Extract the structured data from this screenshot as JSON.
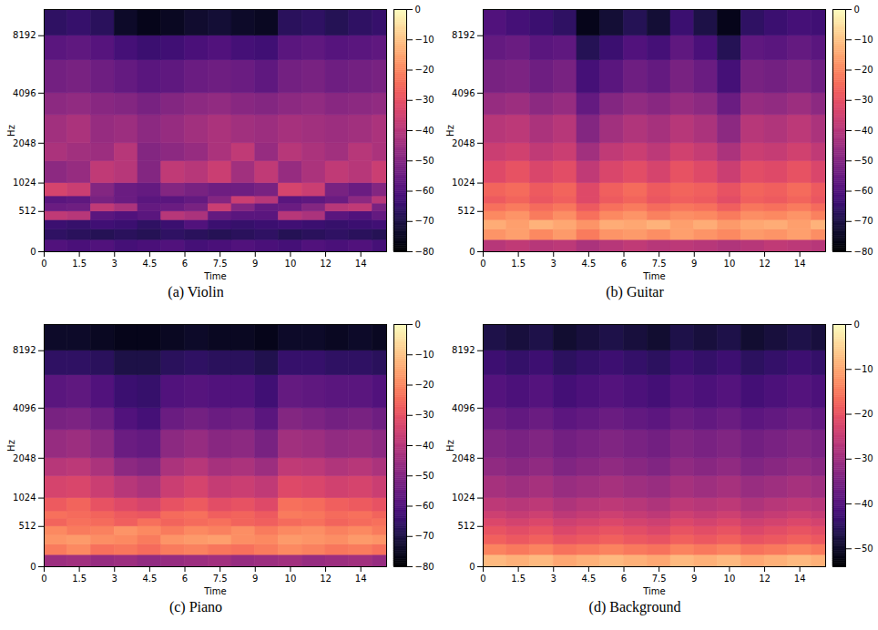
{
  "chart_data": [
    {
      "type": "heatmap",
      "title": "(a) Violin",
      "x_label": "Time",
      "y_label": "Hz",
      "color": "magma",
      "xlim": [
        0,
        14.6
      ],
      "xticks": [
        0,
        1.5,
        3,
        4.5,
        6,
        7.5,
        9,
        {
          "value": 10.5,
          "label": "10"
        },
        12,
        {
          "value": 13.5,
          "label": "14"
        }
      ],
      "ylim": [
        0,
        11025
      ],
      "yticks": [
        0,
        512,
        1024,
        2048,
        4096,
        8192
      ],
      "colorbar_lim": [
        -80,
        0
      ],
      "colorbar_ticks": [
        0,
        -10,
        -20,
        -30,
        -40,
        -50,
        -60,
        -70,
        -80
      ],
      "x_bins": [
        0,
        1,
        2,
        3,
        4,
        5,
        6,
        7,
        8,
        9,
        10,
        11,
        12,
        13,
        14,
        14.6
      ],
      "y_bins": [
        0,
        128,
        256,
        384,
        512,
        640,
        768,
        1024,
        1536,
        2048,
        3072,
        4096,
        6144,
        8192,
        11025
      ],
      "cells": [
        [
          -60,
          -61,
          -60,
          -62,
          -61,
          -60,
          -62,
          -61,
          -60,
          -61,
          -62,
          -60,
          -61,
          -60,
          -62
        ],
        [
          -66,
          -67,
          -68,
          -67,
          -68,
          -66,
          -67,
          -68,
          -67,
          -66,
          -68,
          -67,
          -66,
          -67,
          -68
        ],
        [
          -64,
          -65,
          -63,
          -64,
          -66,
          -64,
          -60,
          -64,
          -65,
          -64,
          -63,
          -64,
          -65,
          -64,
          -63
        ],
        [
          -38,
          -40,
          -58,
          -60,
          -58,
          -40,
          -42,
          -56,
          -58,
          -58,
          -40,
          -42,
          -58,
          -60,
          -56
        ],
        [
          -55,
          -54,
          -38,
          -42,
          -56,
          -55,
          -52,
          -36,
          -50,
          -56,
          -55,
          -50,
          -40,
          -38,
          -52
        ],
        [
          -58,
          -57,
          -52,
          -55,
          -58,
          -58,
          -56,
          -50,
          -36,
          -40,
          -58,
          -57,
          -55,
          -48,
          -40
        ],
        [
          -34,
          -36,
          -50,
          -55,
          -56,
          -50,
          -52,
          -54,
          -54,
          -52,
          -34,
          -36,
          -52,
          -55,
          -50
        ],
        [
          -48,
          -46,
          -38,
          -40,
          -50,
          -38,
          -40,
          -36,
          -44,
          -38,
          -46,
          -42,
          -38,
          -40,
          -36
        ],
        [
          -42,
          -44,
          -45,
          -40,
          -50,
          -48,
          -46,
          -42,
          -38,
          -46,
          -40,
          -42,
          -44,
          -40,
          -42
        ],
        [
          -44,
          -42,
          -46,
          -45,
          -48,
          -46,
          -44,
          -42,
          -44,
          -45,
          -43,
          -44,
          -45,
          -44,
          -42
        ],
        [
          -48,
          -47,
          -49,
          -50,
          -52,
          -50,
          -48,
          -47,
          -49,
          -50,
          -48,
          -47,
          -49,
          -48,
          -47
        ],
        [
          -53,
          -52,
          -54,
          -56,
          -58,
          -57,
          -55,
          -54,
          -55,
          -57,
          -53,
          -52,
          -54,
          -53,
          -52
        ],
        [
          -58,
          -57,
          -59,
          -62,
          -64,
          -63,
          -61,
          -60,
          -62,
          -63,
          -58,
          -57,
          -59,
          -58,
          -57
        ],
        [
          -66,
          -65,
          -67,
          -74,
          -76,
          -75,
          -73,
          -72,
          -74,
          -75,
          -67,
          -66,
          -68,
          -66,
          -65
        ]
      ]
    },
    {
      "type": "heatmap",
      "title": "(b) Guitar",
      "x_label": "Time",
      "y_label": "Hz",
      "color": "magma",
      "xlim": [
        0,
        14.6
      ],
      "xticks": [
        0,
        1.5,
        3,
        4.5,
        6,
        7.5,
        9,
        {
          "value": 10.5,
          "label": "10"
        },
        12,
        {
          "value": 13.5,
          "label": "14"
        }
      ],
      "ylim": [
        0,
        11025
      ],
      "yticks": [
        0,
        512,
        1024,
        2048,
        4096,
        8192
      ],
      "colorbar_lim": [
        -80,
        0
      ],
      "colorbar_ticks": [
        0,
        -10,
        -20,
        -30,
        -40,
        -50,
        -60,
        -70,
        -80
      ],
      "x_bins": [
        0,
        1,
        2,
        3,
        4,
        5,
        6,
        7,
        8,
        9,
        10,
        11,
        12,
        13,
        14,
        14.6
      ],
      "y_bins": [
        0,
        128,
        256,
        384,
        512,
        640,
        768,
        1024,
        1536,
        2048,
        3072,
        4096,
        6144,
        8192,
        11025
      ],
      "cells": [
        [
          -40,
          -38,
          -40,
          -39,
          -42,
          -40,
          -38,
          -40,
          -39,
          -40,
          -41,
          -40,
          -38,
          -39,
          -40
        ],
        [
          -18,
          -16,
          -20,
          -17,
          -22,
          -18,
          -17,
          -19,
          -16,
          -18,
          -20,
          -17,
          -18,
          -16,
          -19
        ],
        [
          -14,
          -16,
          -13,
          -15,
          -18,
          -14,
          -15,
          -13,
          -16,
          -14,
          -17,
          -15,
          -14,
          -16,
          -13
        ],
        [
          -20,
          -18,
          -22,
          -19,
          -24,
          -20,
          -18,
          -21,
          -19,
          -20,
          -22,
          -19,
          -20,
          -18,
          -21
        ],
        [
          -24,
          -22,
          -25,
          -23,
          -28,
          -24,
          -22,
          -25,
          -23,
          -24,
          -27,
          -23,
          -24,
          -22,
          -25
        ],
        [
          -28,
          -26,
          -29,
          -27,
          -32,
          -28,
          -26,
          -29,
          -27,
          -28,
          -31,
          -27,
          -28,
          -26,
          -29
        ],
        [
          -26,
          -25,
          -28,
          -26,
          -32,
          -27,
          -25,
          -28,
          -26,
          -27,
          -30,
          -26,
          -27,
          -25,
          -28
        ],
        [
          -32,
          -30,
          -33,
          -31,
          -38,
          -33,
          -31,
          -34,
          -30,
          -32,
          -36,
          -31,
          -32,
          -30,
          -33
        ],
        [
          -36,
          -35,
          -38,
          -36,
          -44,
          -38,
          -36,
          -39,
          -35,
          -37,
          -42,
          -36,
          -37,
          -35,
          -38
        ],
        [
          -40,
          -39,
          -42,
          -40,
          -50,
          -44,
          -41,
          -43,
          -40,
          -42,
          -48,
          -40,
          -41,
          -39,
          -42
        ],
        [
          -46,
          -45,
          -48,
          -46,
          -56,
          -50,
          -47,
          -49,
          -46,
          -48,
          -55,
          -46,
          -47,
          -45,
          -48
        ],
        [
          -52,
          -51,
          -54,
          -52,
          -62,
          -58,
          -54,
          -56,
          -52,
          -55,
          -62,
          -52,
          -53,
          -51,
          -54
        ],
        [
          -56,
          -55,
          -58,
          -57,
          -68,
          -64,
          -60,
          -62,
          -57,
          -61,
          -68,
          -57,
          -58,
          -56,
          -58
        ],
        [
          -60,
          -62,
          -64,
          -66,
          -76,
          -72,
          -68,
          -72,
          -64,
          -70,
          -76,
          -66,
          -64,
          -62,
          -63
        ]
      ]
    },
    {
      "type": "heatmap",
      "title": "(c) Piano",
      "x_label": "Time",
      "y_label": "Hz",
      "color": "magma",
      "xlim": [
        0,
        14.6
      ],
      "xticks": [
        0,
        1.5,
        3,
        4.5,
        6,
        7.5,
        9,
        {
          "value": 10.5,
          "label": "10"
        },
        12,
        {
          "value": 13.5,
          "label": "14"
        }
      ],
      "ylim": [
        0,
        11025
      ],
      "yticks": [
        0,
        512,
        1024,
        2048,
        4096,
        8192
      ],
      "colorbar_lim": [
        -80,
        0
      ],
      "colorbar_ticks": [
        0,
        -10,
        -20,
        -30,
        -40,
        -50,
        -60,
        -70,
        -80
      ],
      "x_bins": [
        0,
        1,
        2,
        3,
        4,
        5,
        6,
        7,
        8,
        9,
        10,
        11,
        12,
        13,
        14,
        14.6
      ],
      "y_bins": [
        0,
        128,
        256,
        384,
        512,
        640,
        768,
        1024,
        1536,
        2048,
        3072,
        4096,
        6144,
        8192,
        11025
      ],
      "cells": [
        [
          -45,
          -44,
          -46,
          -45,
          -47,
          -46,
          -45,
          -44,
          -46,
          -45,
          -44,
          -46,
          -45,
          -44,
          -46
        ],
        [
          -22,
          -20,
          -24,
          -23,
          -25,
          -22,
          -21,
          -23,
          -24,
          -22,
          -20,
          -21,
          -23,
          -22,
          -24
        ],
        [
          -18,
          -17,
          -19,
          -20,
          -22,
          -18,
          -17,
          -16,
          -19,
          -20,
          -17,
          -18,
          -19,
          -17,
          -18
        ],
        [
          -20,
          -22,
          -21,
          -18,
          -20,
          -22,
          -20,
          -21,
          -19,
          -22,
          -20,
          -19,
          -21,
          -20,
          -22
        ],
        [
          -26,
          -24,
          -25,
          -27,
          -24,
          -26,
          -25,
          -24,
          -26,
          -27,
          -25,
          -24,
          -26,
          -25,
          -24
        ],
        [
          -24,
          -25,
          -26,
          -28,
          -29,
          -25,
          -24,
          -27,
          -26,
          -28,
          -22,
          -23,
          -25,
          -24,
          -26
        ],
        [
          -28,
          -26,
          -30,
          -32,
          -34,
          -30,
          -28,
          -31,
          -30,
          -32,
          -24,
          -25,
          -27,
          -28,
          -30
        ],
        [
          -34,
          -33,
          -36,
          -40,
          -42,
          -36,
          -34,
          -37,
          -36,
          -38,
          -32,
          -33,
          -35,
          -34,
          -36
        ],
        [
          -40,
          -39,
          -42,
          -48,
          -50,
          -42,
          -40,
          -43,
          -42,
          -45,
          -38,
          -39,
          -41,
          -40,
          -42
        ],
        [
          -46,
          -45,
          -48,
          -55,
          -56,
          -48,
          -46,
          -49,
          -48,
          -52,
          -44,
          -45,
          -47,
          -46,
          -48
        ],
        [
          -52,
          -51,
          -54,
          -60,
          -62,
          -55,
          -53,
          -55,
          -54,
          -58,
          -50,
          -51,
          -53,
          -52,
          -54
        ],
        [
          -58,
          -57,
          -60,
          -64,
          -65,
          -60,
          -59,
          -60,
          -60,
          -63,
          -56,
          -57,
          -58,
          -58,
          -60
        ],
        [
          -66,
          -66,
          -67,
          -70,
          -70,
          -67,
          -66,
          -67,
          -67,
          -69,
          -65,
          -65,
          -66,
          -66,
          -67
        ],
        [
          -74,
          -74,
          -75,
          -76,
          -76,
          -75,
          -74,
          -75,
          -75,
          -76,
          -74,
          -74,
          -75,
          -74,
          -75
        ]
      ]
    },
    {
      "type": "heatmap",
      "title": "(d) Background",
      "x_label": "Time",
      "y_label": "Hz",
      "color": "magma",
      "xlim": [
        0,
        14.6
      ],
      "xticks": [
        0,
        1.5,
        3,
        4.5,
        6,
        7.5,
        9,
        {
          "value": 10.5,
          "label": "10"
        },
        12,
        {
          "value": 13.5,
          "label": "14"
        }
      ],
      "ylim": [
        0,
        11025
      ],
      "yticks": [
        0,
        512,
        1024,
        2048,
        4096,
        8192
      ],
      "colorbar_lim": [
        -54,
        0
      ],
      "colorbar_ticks": [
        0,
        -10,
        -20,
        -30,
        -40,
        -50
      ],
      "x_bins": [
        0,
        1,
        2,
        3,
        4,
        5,
        6,
        7,
        8,
        9,
        10,
        11,
        12,
        13,
        14,
        14.6
      ],
      "y_bins": [
        0,
        128,
        256,
        384,
        512,
        640,
        768,
        1024,
        1536,
        2048,
        3072,
        4096,
        6144,
        8192,
        11025
      ],
      "cells": [
        [
          -8,
          -9,
          -8,
          -10,
          -9,
          -8,
          -9,
          -10,
          -8,
          -9,
          -8,
          -10,
          -9,
          -8,
          -9
        ],
        [
          -14,
          -15,
          -14,
          -16,
          -15,
          -14,
          -15,
          -16,
          -14,
          -15,
          -14,
          -16,
          -15,
          -14,
          -15
        ],
        [
          -18,
          -19,
          -18,
          -20,
          -19,
          -18,
          -19,
          -20,
          -18,
          -19,
          -18,
          -20,
          -19,
          -18,
          -19
        ],
        [
          -20,
          -21,
          -20,
          -22,
          -21,
          -20,
          -21,
          -22,
          -20,
          -21,
          -20,
          -22,
          -21,
          -20,
          -21
        ],
        [
          -22,
          -23,
          -22,
          -24,
          -23,
          -22,
          -23,
          -24,
          -22,
          -23,
          -22,
          -24,
          -23,
          -22,
          -23
        ],
        [
          -24,
          -25,
          -24,
          -26,
          -25,
          -24,
          -25,
          -26,
          -24,
          -25,
          -24,
          -26,
          -25,
          -24,
          -25
        ],
        [
          -26,
          -27,
          -26,
          -28,
          -27,
          -26,
          -27,
          -28,
          -26,
          -27,
          -26,
          -28,
          -27,
          -26,
          -27
        ],
        [
          -29,
          -30,
          -29,
          -31,
          -30,
          -29,
          -30,
          -31,
          -29,
          -30,
          -29,
          -31,
          -30,
          -29,
          -30
        ],
        [
          -32,
          -33,
          -32,
          -34,
          -33,
          -32,
          -33,
          -34,
          -32,
          -33,
          -32,
          -34,
          -33,
          -32,
          -33
        ],
        [
          -34,
          -35,
          -34,
          -36,
          -35,
          -34,
          -35,
          -36,
          -34,
          -35,
          -34,
          -36,
          -35,
          -34,
          -35
        ],
        [
          -37,
          -38,
          -37,
          -39,
          -38,
          -37,
          -38,
          -39,
          -37,
          -38,
          -37,
          -39,
          -38,
          -37,
          -38
        ],
        [
          -40,
          -41,
          -40,
          -42,
          -41,
          -40,
          -41,
          -42,
          -40,
          -41,
          -40,
          -42,
          -41,
          -40,
          -41
        ],
        [
          -43,
          -44,
          -43,
          -45,
          -44,
          -43,
          -44,
          -45,
          -43,
          -44,
          -43,
          -45,
          -44,
          -43,
          -44
        ],
        [
          -47,
          -48,
          -47,
          -49,
          -48,
          -47,
          -48,
          -49,
          -47,
          -48,
          -47,
          -49,
          -48,
          -47,
          -48
        ]
      ]
    }
  ]
}
